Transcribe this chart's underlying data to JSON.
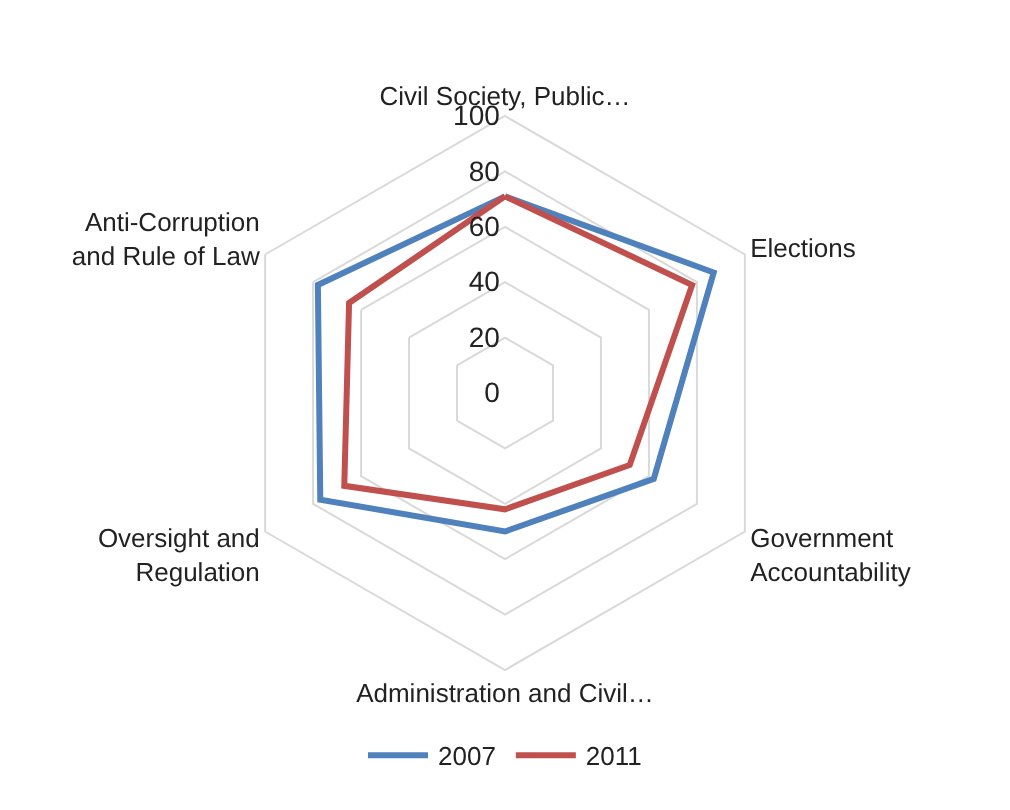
{
  "chart_data": {
    "type": "radar",
    "categories": [
      "Civil Society, Public…",
      "Elections",
      "Government\nAccountability",
      "Administration and Civil…",
      "Oversight and\nRegulation",
      "Anti-Corruption\nand Rule of Law"
    ],
    "series": [
      {
        "name": "2007",
        "color": "#4f81bd",
        "values": [
          71,
          87,
          62,
          50,
          77,
          78
        ]
      },
      {
        "name": "2011",
        "color": "#c0504d",
        "values": [
          71,
          78,
          52,
          42,
          67,
          65
        ]
      }
    ],
    "ylim": [
      0,
      100
    ],
    "yticks": [
      0,
      20,
      40,
      60,
      80,
      100
    ],
    "grid": true,
    "legend": "bottom",
    "marker": "none",
    "line_style": "solid"
  }
}
